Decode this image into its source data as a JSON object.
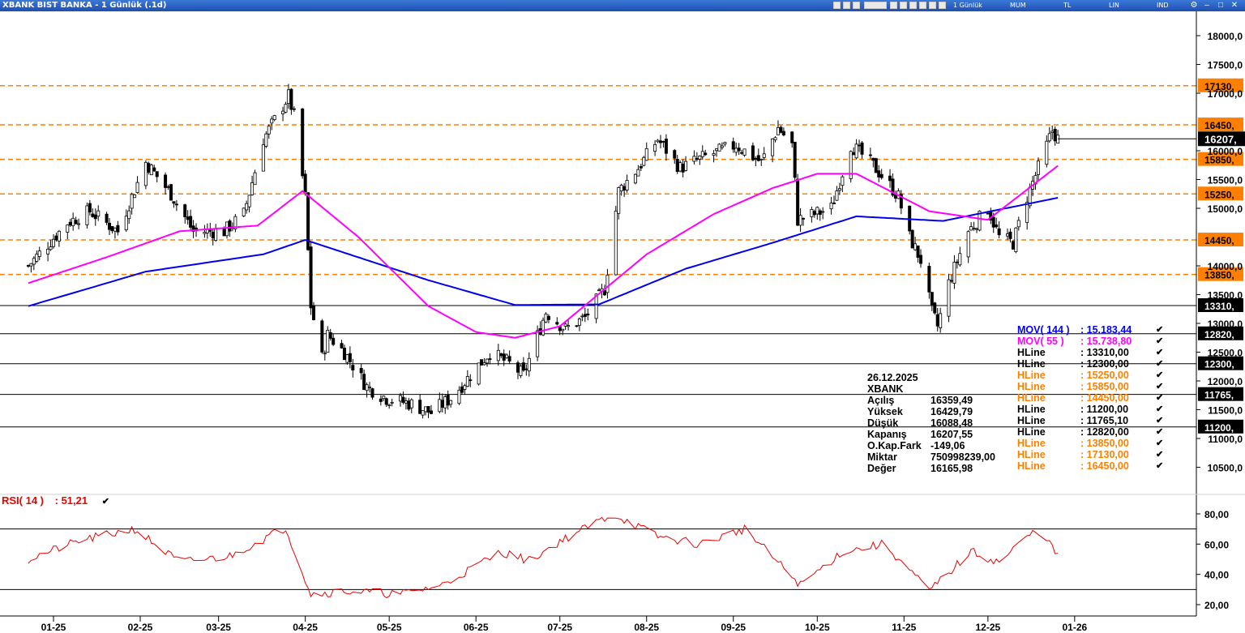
{
  "window": {
    "title": "XBANK BIST BANKA - 1 Günlük (.1d)",
    "period": "1 Günlük",
    "chart_type": "MUM",
    "currency": "TL",
    "scale": "LIN",
    "indicator": "IND"
  },
  "price_axis": {
    "ticks": [
      "18000,0",
      "17500,0",
      "17000,0",
      "16000,0",
      "15500,0",
      "15000,0",
      "14000,0",
      "13500,0",
      "13000,0",
      "12500,0",
      "12000,0",
      "11500,0",
      "11000,0",
      "10500,0"
    ],
    "tick_values": [
      18000,
      17500,
      17000,
      16000,
      15500,
      15000,
      14000,
      13500,
      13000,
      12500,
      12000,
      11500,
      11000,
      10500
    ],
    "last_price_label": "16207,",
    "last_price": 16207.55
  },
  "hlines": [
    {
      "value": 17130,
      "label": "17130,",
      "color": "#ff8000"
    },
    {
      "value": 16450,
      "label": "16450,",
      "color": "#ff8000"
    },
    {
      "value": 15850,
      "label": "15850,",
      "color": "#ff8000"
    },
    {
      "value": 15250,
      "label": "15250,",
      "color": "#ff8000"
    },
    {
      "value": 14450,
      "label": "14450,",
      "color": "#ff8000"
    },
    {
      "value": 13850,
      "label": "13850,",
      "color": "#ff8000"
    },
    {
      "value": 13310,
      "label": "13310,",
      "color": "#000000"
    },
    {
      "value": 12820,
      "label": "12820,",
      "color": "#000000"
    },
    {
      "value": 12300,
      "label": "12300,",
      "color": "#000000"
    },
    {
      "value": 11765.1,
      "label": "11765,",
      "color": "#000000"
    },
    {
      "value": 11200,
      "label": "11200,",
      "color": "#000000"
    }
  ],
  "info_box": {
    "date": "26.12.2025",
    "symbol": "XBANK",
    "rows": [
      {
        "label": "Açılış",
        "value": "16359,49"
      },
      {
        "label": "Yüksek",
        "value": "16429,79"
      },
      {
        "label": "Düşük",
        "value": "16088,48"
      },
      {
        "label": "Kapanış",
        "value": "16207,55"
      },
      {
        "label": "O.Kap.Fark",
        "value": "-149,06"
      },
      {
        "label": "Miktar",
        "value": "750998239,00"
      },
      {
        "label": "Değer",
        "value": "16165,98"
      }
    ]
  },
  "legend": [
    {
      "name": "MOV( 144 )",
      "value": ": 15.183,44",
      "color": "#0000ff"
    },
    {
      "name": "MOV( 55 )",
      "value": ": 15.738,80",
      "color": "#ff00ff"
    },
    {
      "name": "HLine",
      "value": ": 13310,00",
      "color": "#000000"
    },
    {
      "name": "HLine",
      "value": ": 12300,00",
      "color": "#000000"
    },
    {
      "name": "HLine",
      "value": ": 15250,00",
      "color": "#ff8000"
    },
    {
      "name": "HLine",
      "value": ": 15850,00",
      "color": "#ff8000"
    },
    {
      "name": "HLine",
      "value": ": 14450,00",
      "color": "#ff8000"
    },
    {
      "name": "HLine",
      "value": ": 11200,00",
      "color": "#000000"
    },
    {
      "name": "HLine",
      "value": ": 11765,10",
      "color": "#000000"
    },
    {
      "name": "HLine",
      "value": ": 12820,00",
      "color": "#000000"
    },
    {
      "name": "HLine",
      "value": ": 13850,00",
      "color": "#ff8000"
    },
    {
      "name": "HLine",
      "value": ": 17130,00",
      "color": "#ff8000"
    },
    {
      "name": "HLine",
      "value": ": 16450,00",
      "color": "#ff8000"
    }
  ],
  "rsi": {
    "label": "RSI( 14 )",
    "value": ": 51,21",
    "ticks": [
      "80,00",
      "60,00",
      "40,00",
      "20,00"
    ],
    "tick_values": [
      80,
      60,
      40,
      20
    ],
    "levels": [
      70,
      30
    ]
  },
  "x_axis": {
    "labels": [
      "01-25",
      "02-25",
      "03-25",
      "04-25",
      "05-25",
      "06-25",
      "07-25",
      "08-25",
      "09-25",
      "10-25",
      "11-25",
      "12-25",
      "01-26"
    ],
    "label_dates": [
      "2025-01-01",
      "2025-02-01",
      "2025-03-01",
      "2025-04-01",
      "2025-05-01",
      "2025-06-01",
      "2025-07-01",
      "2025-08-01",
      "2025-09-01",
      "2025-10-01",
      "2025-11-01",
      "2025-12-01",
      "2026-01-01"
    ]
  },
  "chart_data": {
    "type": "candlestick",
    "title": "XBANK BIST BANKA - 1 Günlük (.1d)",
    "ylim": [
      10000,
      18400
    ],
    "price_anchors": [
      {
        "date": "2024-12-23",
        "value": 14000
      },
      {
        "date": "2025-01-06",
        "value": 14750
      },
      {
        "date": "2025-01-14",
        "value": 14950
      },
      {
        "date": "2025-01-24",
        "value": 14600
      },
      {
        "date": "2025-02-03",
        "value": 15800
      },
      {
        "date": "2025-02-12",
        "value": 15250
      },
      {
        "date": "2025-02-20",
        "value": 14600
      },
      {
        "date": "2025-03-03",
        "value": 14600
      },
      {
        "date": "2025-03-10",
        "value": 14900
      },
      {
        "date": "2025-03-17",
        "value": 16200
      },
      {
        "date": "2025-03-26",
        "value": 16950
      },
      {
        "date": "2025-03-28",
        "value": 16600
      },
      {
        "date": "2025-04-01",
        "value": 15200
      },
      {
        "date": "2025-04-03",
        "value": 13300
      },
      {
        "date": "2025-04-07",
        "value": 12400
      },
      {
        "date": "2025-04-09",
        "value": 12800
      },
      {
        "date": "2025-04-15",
        "value": 12500
      },
      {
        "date": "2025-04-23",
        "value": 11900
      },
      {
        "date": "2025-04-30",
        "value": 11700
      },
      {
        "date": "2025-05-09",
        "value": 11600
      },
      {
        "date": "2025-05-16",
        "value": 11450
      },
      {
        "date": "2025-05-23",
        "value": 11700
      },
      {
        "date": "2025-05-30",
        "value": 12100
      },
      {
        "date": "2025-06-06",
        "value": 12500
      },
      {
        "date": "2025-06-13",
        "value": 12300
      },
      {
        "date": "2025-06-18",
        "value": 12100
      },
      {
        "date": "2025-06-26",
        "value": 13200
      },
      {
        "date": "2025-07-03",
        "value": 12900
      },
      {
        "date": "2025-07-10",
        "value": 13100
      },
      {
        "date": "2025-07-17",
        "value": 13600
      },
      {
        "date": "2025-07-22",
        "value": 15300
      },
      {
        "date": "2025-07-29",
        "value": 15700
      },
      {
        "date": "2025-08-05",
        "value": 16200
      },
      {
        "date": "2025-08-13",
        "value": 15700
      },
      {
        "date": "2025-08-22",
        "value": 15900
      },
      {
        "date": "2025-09-02",
        "value": 16100
      },
      {
        "date": "2025-09-11",
        "value": 15800
      },
      {
        "date": "2025-09-17",
        "value": 16400
      },
      {
        "date": "2025-09-22",
        "value": 16100
      },
      {
        "date": "2025-09-24",
        "value": 14800
      },
      {
        "date": "2025-09-30",
        "value": 14900
      },
      {
        "date": "2025-10-06",
        "value": 15000
      },
      {
        "date": "2025-10-13",
        "value": 16100
      },
      {
        "date": "2025-10-20",
        "value": 15800
      },
      {
        "date": "2025-10-27",
        "value": 15400
      },
      {
        "date": "2025-10-30",
        "value": 15200
      },
      {
        "date": "2025-11-03",
        "value": 14500
      },
      {
        "date": "2025-11-07",
        "value": 14100
      },
      {
        "date": "2025-11-11",
        "value": 13200
      },
      {
        "date": "2025-11-13",
        "value": 12950
      },
      {
        "date": "2025-11-17",
        "value": 13700
      },
      {
        "date": "2025-11-24",
        "value": 14600
      },
      {
        "date": "2025-12-01",
        "value": 15000
      },
      {
        "date": "2025-12-05",
        "value": 14500
      },
      {
        "date": "2025-12-10",
        "value": 14400
      },
      {
        "date": "2025-12-15",
        "value": 15200
      },
      {
        "date": "2025-12-19",
        "value": 15700
      },
      {
        "date": "2025-12-24",
        "value": 16350
      },
      {
        "date": "2025-12-26",
        "value": 16207.55
      }
    ],
    "ma144_anchors": [
      {
        "date": "2024-12-23",
        "value": 13300
      },
      {
        "date": "2025-02-03",
        "value": 13900
      },
      {
        "date": "2025-03-17",
        "value": 14200
      },
      {
        "date": "2025-04-01",
        "value": 14450
      },
      {
        "date": "2025-05-15",
        "value": 13750
      },
      {
        "date": "2025-06-15",
        "value": 13320
      },
      {
        "date": "2025-07-15",
        "value": 13330
      },
      {
        "date": "2025-08-15",
        "value": 13950
      },
      {
        "date": "2025-09-15",
        "value": 14400
      },
      {
        "date": "2025-10-15",
        "value": 14860
      },
      {
        "date": "2025-11-15",
        "value": 14780
      },
      {
        "date": "2025-12-26",
        "value": 15183.44
      }
    ],
    "ma55_anchors": [
      {
        "date": "2024-12-23",
        "value": 13700
      },
      {
        "date": "2025-01-20",
        "value": 14150
      },
      {
        "date": "2025-02-15",
        "value": 14600
      },
      {
        "date": "2025-03-15",
        "value": 14700
      },
      {
        "date": "2025-03-31",
        "value": 15300
      },
      {
        "date": "2025-04-20",
        "value": 14500
      },
      {
        "date": "2025-05-15",
        "value": 13300
      },
      {
        "date": "2025-06-01",
        "value": 12850
      },
      {
        "date": "2025-06-15",
        "value": 12750
      },
      {
        "date": "2025-07-01",
        "value": 12950
      },
      {
        "date": "2025-08-01",
        "value": 14200
      },
      {
        "date": "2025-08-25",
        "value": 14900
      },
      {
        "date": "2025-09-15",
        "value": 15350
      },
      {
        "date": "2025-10-01",
        "value": 15600
      },
      {
        "date": "2025-10-15",
        "value": 15600
      },
      {
        "date": "2025-11-10",
        "value": 14950
      },
      {
        "date": "2025-12-01",
        "value": 14800
      },
      {
        "date": "2025-12-26",
        "value": 15738.8
      }
    ],
    "rsi_anchors": [
      {
        "date": "2024-12-23",
        "value": 50
      },
      {
        "date": "2025-01-10",
        "value": 62
      },
      {
        "date": "2025-01-30",
        "value": 70
      },
      {
        "date": "2025-02-15",
        "value": 48
      },
      {
        "date": "2025-03-05",
        "value": 52
      },
      {
        "date": "2025-03-25",
        "value": 71
      },
      {
        "date": "2025-04-03",
        "value": 27
      },
      {
        "date": "2025-04-15",
        "value": 29
      },
      {
        "date": "2025-05-05",
        "value": 27
      },
      {
        "date": "2025-05-20",
        "value": 33
      },
      {
        "date": "2025-06-10",
        "value": 55
      },
      {
        "date": "2025-06-20",
        "value": 49
      },
      {
        "date": "2025-07-01",
        "value": 62
      },
      {
        "date": "2025-07-20",
        "value": 80
      },
      {
        "date": "2025-08-05",
        "value": 65
      },
      {
        "date": "2025-08-20",
        "value": 60
      },
      {
        "date": "2025-09-05",
        "value": 70
      },
      {
        "date": "2025-09-25",
        "value": 33
      },
      {
        "date": "2025-10-10",
        "value": 55
      },
      {
        "date": "2025-10-25",
        "value": 60
      },
      {
        "date": "2025-11-10",
        "value": 29
      },
      {
        "date": "2025-11-25",
        "value": 55
      },
      {
        "date": "2025-12-05",
        "value": 48
      },
      {
        "date": "2025-12-15",
        "value": 65
      },
      {
        "date": "2025-12-20",
        "value": 70
      },
      {
        "date": "2025-12-26",
        "value": 51.21
      }
    ]
  }
}
